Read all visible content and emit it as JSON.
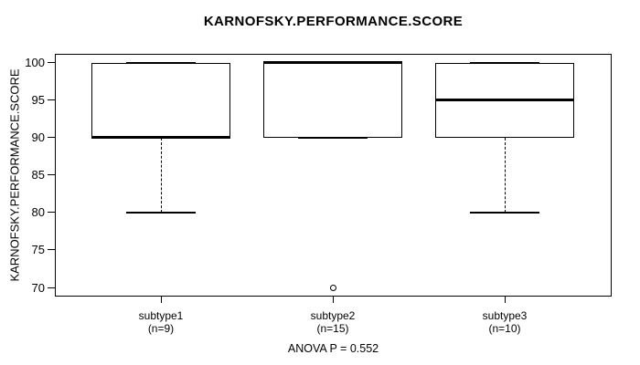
{
  "chart_data": {
    "type": "boxplot",
    "title": "KARNOFSKY.PERFORMANCE.SCORE",
    "ylabel": "KARNOFSKY.PERFORMANCE.SCORE",
    "ylim": [
      70,
      100
    ],
    "yticks": [
      70,
      75,
      80,
      85,
      90,
      95,
      100
    ],
    "annotation": "ANOVA P = 0.552",
    "grid": false,
    "legend": false,
    "groups": [
      {
        "label": "subtype1",
        "n_label": "(n=9)",
        "q1": 90,
        "median": 90,
        "q3": 100,
        "whisker_low": 80,
        "whisker_high": 100,
        "outliers": []
      },
      {
        "label": "subtype2",
        "n_label": "(n=15)",
        "q1": 90,
        "median": 100,
        "q3": 100,
        "whisker_low": 90,
        "whisker_high": 100,
        "outliers": [
          70
        ]
      },
      {
        "label": "subtype3",
        "n_label": "(n=10)",
        "q1": 90,
        "median": 95,
        "q3": 100,
        "whisker_low": 80,
        "whisker_high": 100,
        "outliers": []
      }
    ],
    "colors": {
      "line": "#000000",
      "background": "#ffffff"
    }
  }
}
